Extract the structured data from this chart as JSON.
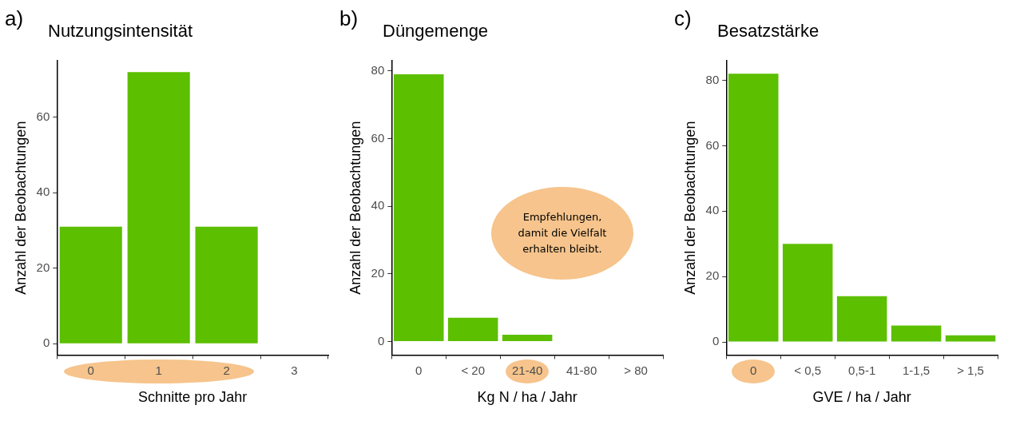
{
  "chart_data": [
    {
      "type": "bar",
      "title": "Nutzungsintensität",
      "xlabel": "Schnitte pro Jahr",
      "ylabel": "Anzahl der Beobachtungen",
      "categories": [
        "0",
        "1",
        "2",
        "3"
      ],
      "values": [
        31,
        72,
        31,
        0
      ],
      "color": "#5cbf00",
      "ylim": [
        -3,
        75
      ],
      "yticks": [
        0,
        20,
        40,
        60
      ],
      "grid": false,
      "annotations": [
        "a)"
      ]
    },
    {
      "type": "bar",
      "title": "Düngemenge",
      "xlabel": "Kg N / ha / Jahr",
      "ylabel": "Anzahl der Beobachtungen",
      "categories": [
        "0",
        "< 20",
        "21-40",
        "41-80",
        "> 80"
      ],
      "values": [
        79,
        7,
        2,
        0,
        0
      ],
      "color": "#5cbf00",
      "ylim": [
        -4,
        83
      ],
      "yticks": [
        0,
        20,
        40,
        60,
        80
      ],
      "grid": false,
      "annotations": [
        "b)",
        "Empfehlungen, damit die Vielfalt erhalten bleibt."
      ]
    },
    {
      "type": "bar",
      "title": "Besatzstärke",
      "xlabel": "GVE / ha / Jahr",
      "ylabel": "Anzahl der Beobachtungen",
      "categories": [
        "0",
        "< 0,5",
        "0,5-1",
        "1-1,5",
        "> 1,5"
      ],
      "values": [
        82,
        30,
        14,
        5,
        2
      ],
      "color": "#5cbf00",
      "ylim": [
        -4,
        86
      ],
      "yticks": [
        0,
        20,
        40,
        60,
        80
      ],
      "grid": false,
      "annotations": [
        "c)"
      ]
    }
  ]
}
